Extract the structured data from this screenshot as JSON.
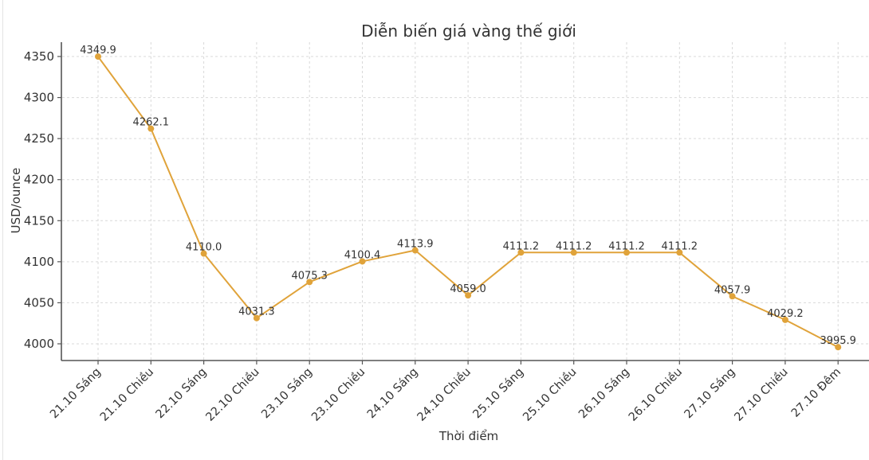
{
  "chart_data": {
    "type": "line",
    "title": "Diễn biến giá vàng thế giới",
    "xlabel": "Thời điểm",
    "ylabel": "USD/ounce",
    "categories": [
      "21.10 Sáng",
      "21.10 Chiều",
      "22.10 Sáng",
      "22.10 Chiều",
      "23.10 Sáng",
      "23.10 Chiều",
      "24.10 Sáng",
      "24.10 Chiều",
      "25.10 Sáng",
      "25.10 Chiều",
      "26.10 Sáng",
      "26.10 Chiều",
      "27.10 Sáng",
      "27.10 Chiều",
      "27.10 Đêm"
    ],
    "series": [
      {
        "name": "Giá vàng thế giới",
        "color": "#E0A33A",
        "values": [
          4349.9,
          4262.1,
          4110.0,
          4031.3,
          4075.3,
          4100.4,
          4113.9,
          4059.0,
          4111.2,
          4111.2,
          4111.2,
          4111.2,
          4057.9,
          4029.2,
          3995.9
        ]
      }
    ],
    "yticks": [
      4000,
      4050,
      4100,
      4150,
      4200,
      4250,
      4300,
      4350
    ],
    "ylim": [
      3980,
      4367
    ],
    "grid": true,
    "legend": false,
    "data_labels": true
  }
}
